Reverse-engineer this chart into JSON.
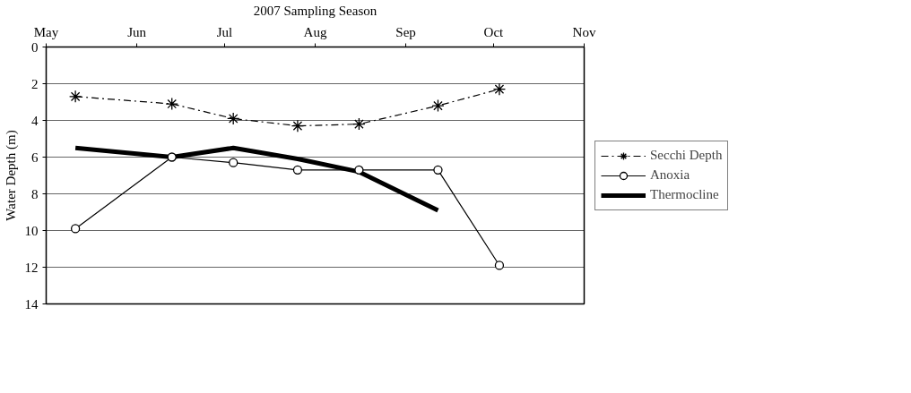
{
  "chart_data": {
    "type": "line",
    "xlabel": "2007 Sampling Season",
    "ylabel": "Water Depth (m)",
    "xlim": [
      "2007-05-01",
      "2007-11-01"
    ],
    "xticks": [
      {
        "value": "2007-05-01",
        "label": "May"
      },
      {
        "value": "2007-06-01",
        "label": "Jun"
      },
      {
        "value": "2007-07-01",
        "label": "Jul"
      },
      {
        "value": "2007-08-01",
        "label": "Aug"
      },
      {
        "value": "2007-09-01",
        "label": "Sep"
      },
      {
        "value": "2007-10-01",
        "label": "Oct"
      },
      {
        "value": "2007-11-01",
        "label": "Nov"
      }
    ],
    "ylim": [
      14,
      0
    ],
    "yticks": [
      0,
      2,
      4,
      6,
      8,
      10,
      12,
      14
    ],
    "grid": "y",
    "legend": "right",
    "series": [
      {
        "name": "Secchi Depth",
        "color": "#000000",
        "marker": "cross",
        "line_style": "dashed",
        "x": [
          "2007-05-11",
          "2007-06-13",
          "2007-07-04",
          "2007-07-26",
          "2007-08-16",
          "2007-09-12",
          "2007-10-03"
        ],
        "values": [
          2.7,
          3.1,
          3.9,
          4.3,
          4.2,
          3.2,
          2.3
        ]
      },
      {
        "name": "Anoxia",
        "color": "#000000",
        "marker": "circle",
        "line_style": "solid",
        "x": [
          "2007-05-11",
          "2007-06-13",
          "2007-07-04",
          "2007-07-26",
          "2007-08-16",
          "2007-09-12",
          "2007-10-03"
        ],
        "values": [
          9.9,
          6.0,
          6.3,
          6.7,
          6.7,
          6.7,
          11.9
        ]
      },
      {
        "name": "Thermocline",
        "color": "#000000",
        "marker": "none",
        "line_style": "solid",
        "x": [
          "2007-05-11",
          "2007-06-13",
          "2007-07-04",
          "2007-07-26",
          "2007-08-16",
          "2007-09-12"
        ],
        "values": [
          5.5,
          6.0,
          5.5,
          6.1,
          6.8,
          8.9
        ]
      }
    ]
  }
}
